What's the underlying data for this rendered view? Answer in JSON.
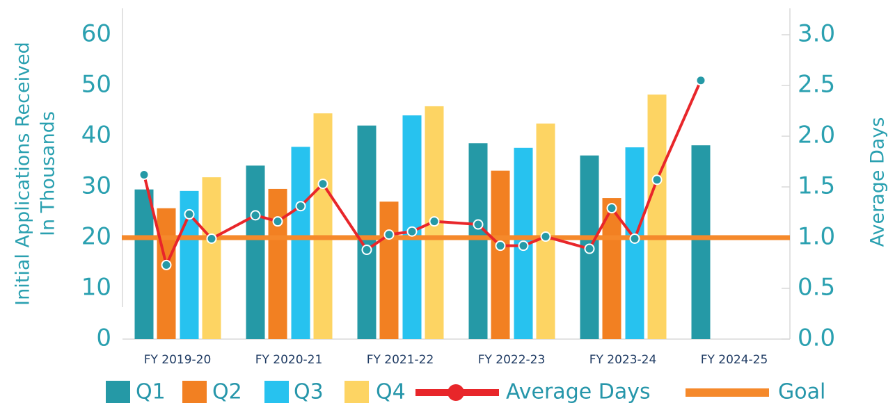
{
  "chart_data": {
    "type": "bar",
    "categories": [
      "FY 2019-20",
      "FY 2020-21",
      "FY 2021-22",
      "FY 2022-23",
      "FY 2023-24",
      "FY 2024-25"
    ],
    "y_label_lines": [
      "Initial Applications Received",
      "In Thousands"
    ],
    "y2_label": "Average Days",
    "ylim": [
      0,
      60
    ],
    "yticks": [
      0,
      10,
      20,
      30,
      40,
      50,
      60
    ],
    "y2lim": [
      0,
      3
    ],
    "y2ticks": [
      {
        "value": 0,
        "label": "0.0"
      },
      0.5,
      {
        "value": 1,
        "label": "1.0"
      },
      1.5,
      {
        "value": 2,
        "label": "2.0"
      },
      2.5,
      {
        "value": 3,
        "label": "3.0"
      }
    ],
    "series": [
      {
        "name": "Q1",
        "color": "#2599a6",
        "values": [
          29.5,
          34.2,
          42.1,
          38.6,
          36.2,
          38.2
        ]
      },
      {
        "name": "Q2",
        "color": "#f28022",
        "values": [
          25.8,
          29.6,
          27.1,
          33.2,
          27.8,
          null
        ]
      },
      {
        "name": "Q3",
        "color": "#27c2ef",
        "values": [
          29.2,
          37.9,
          44.1,
          37.7,
          37.8,
          null
        ]
      },
      {
        "name": "Q4",
        "color": "#fdd463",
        "values": [
          31.9,
          44.5,
          45.9,
          42.5,
          48.2,
          null
        ]
      }
    ],
    "line": {
      "name": "Average Days",
      "color": "#e8262a",
      "marker_color": "#2599a6",
      "axis": "y2",
      "values": [
        1.62,
        0.73,
        1.23,
        0.99,
        1.22,
        1.16,
        1.31,
        1.53,
        0.88,
        1.03,
        1.06,
        1.16,
        1.13,
        0.92,
        0.92,
        1.01,
        0.89,
        1.29,
        0.99,
        1.57,
        2.55,
        null,
        null,
        null
      ]
    },
    "goal": {
      "name": "Goal",
      "color": "#f5892b",
      "value": 1,
      "axis": "y2"
    }
  }
}
